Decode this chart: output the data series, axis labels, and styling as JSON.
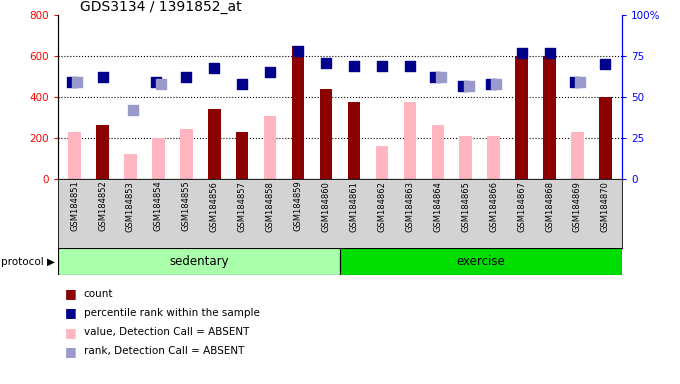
{
  "title": "GDS3134 / 1391852_at",
  "samples": [
    "GSM184851",
    "GSM184852",
    "GSM184853",
    "GSM184854",
    "GSM184855",
    "GSM184856",
    "GSM184857",
    "GSM184858",
    "GSM184859",
    "GSM184860",
    "GSM184861",
    "GSM184862",
    "GSM184863",
    "GSM184864",
    "GSM184865",
    "GSM184866",
    "GSM184867",
    "GSM184868",
    "GSM184869",
    "GSM184870"
  ],
  "count": [
    null,
    265,
    null,
    null,
    null,
    340,
    228,
    null,
    650,
    440,
    375,
    null,
    null,
    null,
    null,
    null,
    600,
    600,
    null,
    400
  ],
  "value_absent": [
    228,
    null,
    120,
    200,
    242,
    null,
    null,
    305,
    null,
    null,
    null,
    160,
    375,
    265,
    210,
    210,
    null,
    null,
    230,
    null
  ],
  "percentile_rank": [
    59,
    62,
    null,
    59,
    62,
    68,
    58,
    65,
    78,
    71,
    69,
    69,
    69,
    62,
    57,
    58,
    77,
    77,
    59,
    70
  ],
  "rank_absent": [
    59,
    null,
    42,
    58,
    null,
    null,
    null,
    null,
    null,
    null,
    null,
    null,
    null,
    62,
    57,
    58,
    null,
    null,
    59,
    null
  ],
  "sedentary_count": 10,
  "exercise_count": 10,
  "ylim_left": [
    0,
    800
  ],
  "ylim_right": [
    0,
    100
  ],
  "yticks_left": [
    0,
    200,
    400,
    600,
    800
  ],
  "yticks_right": [
    0,
    25,
    50,
    75,
    100
  ],
  "grid_values": [
    200,
    400,
    600
  ],
  "bar_color_count": "#8B0000",
  "bar_color_absent": "#FFB6C1",
  "dot_color_rank": "#00008B",
  "dot_color_rank_absent": "#9999CC",
  "sedentary_color": "#AAFFAA",
  "exercise_color": "#00DD00",
  "legend_items": [
    "count",
    "percentile rank within the sample",
    "value, Detection Call = ABSENT",
    "rank, Detection Call = ABSENT"
  ],
  "legend_colors": [
    "#8B0000",
    "#00008B",
    "#FFB6C1",
    "#9999CC"
  ],
  "bg_gray": "#D3D3D3"
}
